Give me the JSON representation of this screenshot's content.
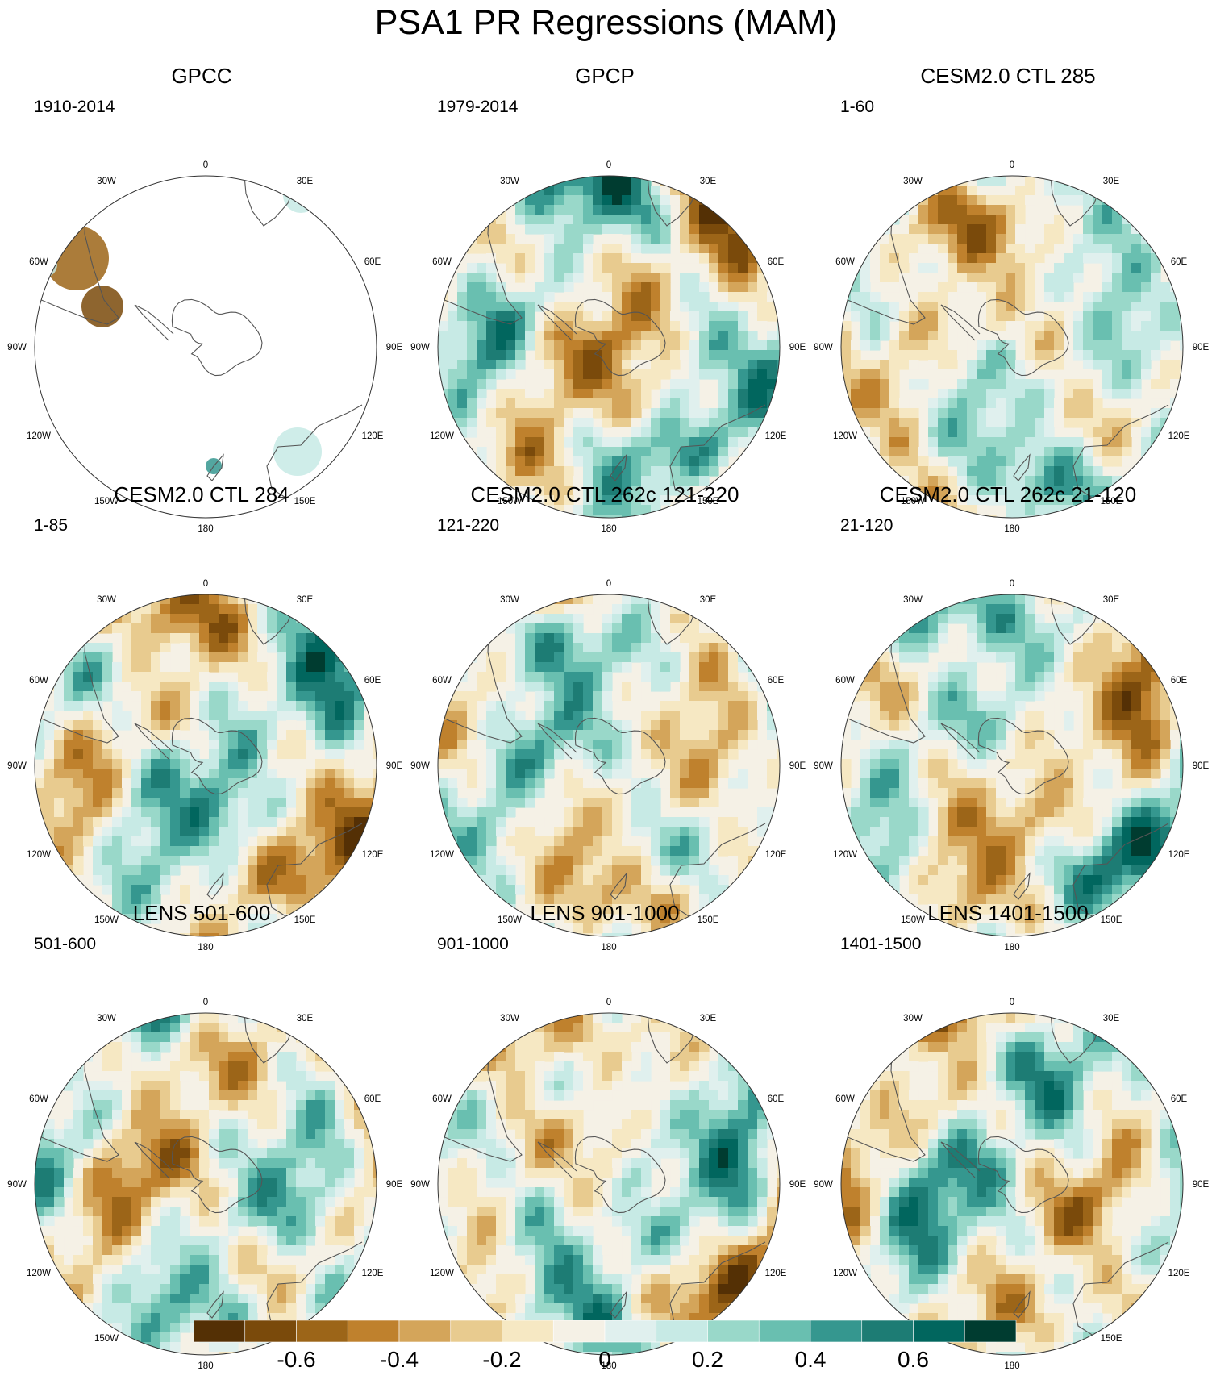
{
  "title": "PSA1 PR Regressions (MAM)",
  "projection": "south-polar-stereographic",
  "longitude_labels": {
    "top": "0",
    "bottom": "180",
    "upper_left": "30W",
    "upper_right": "30E",
    "left_high": "60W",
    "right_high": "60E",
    "left_mid": "90W",
    "right_mid": "90E",
    "left_low": "120W",
    "right_low": "120E",
    "lower_left": "150W",
    "lower_right": "150E"
  },
  "panels": [
    {
      "title": "GPCC",
      "period": "1910-2014",
      "land_only": true
    },
    {
      "title": "GPCP",
      "period": "1979-2014"
    },
    {
      "title": "CESM2.0 CTL 285",
      "period": "1-60"
    },
    {
      "title": "CESM2.0 CTL 284",
      "period": "1-85"
    },
    {
      "title": "CESM2.0 CTL 262c 121-220",
      "period": "121-220"
    },
    {
      "title": "CESM2.0 CTL 262c 21-120",
      "period": "21-120"
    },
    {
      "title": "LENS 501-600",
      "period": "501-600"
    },
    {
      "title": "LENS 901-1000",
      "period": "901-1000"
    },
    {
      "title": "LENS 1401-1500",
      "period": "1401-1500"
    }
  ],
  "colorbar": {
    "colors": [
      "#543005",
      "#7a4a0b",
      "#9c6518",
      "#bf812d",
      "#d4a55a",
      "#e8cb8f",
      "#f6e8c3",
      "#f5f1e6",
      "#e0f0ee",
      "#c7eae5",
      "#99d8c9",
      "#69bfb0",
      "#35978f",
      "#1d7c74",
      "#01665e",
      "#003c30"
    ],
    "tick_labels": [
      "-0.6",
      "-0.4",
      "-0.2",
      "0",
      "0.2",
      "0.4",
      "0.6"
    ]
  }
}
